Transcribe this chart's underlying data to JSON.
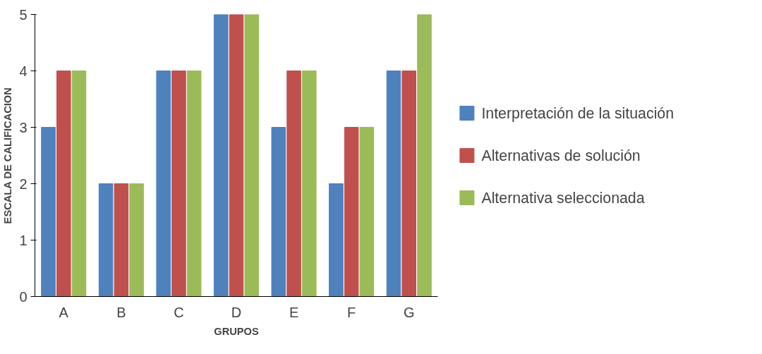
{
  "chart_data": {
    "type": "bar",
    "xlabel": "GRUPOS",
    "ylabel": "ESCALA DE CALIFICACION",
    "categories": [
      "A",
      "B",
      "C",
      "D",
      "E",
      "F",
      "G"
    ],
    "series": [
      {
        "name": "Interpretación de la situación",
        "color": "#4f81bd",
        "values": [
          3,
          2,
          4,
          5,
          3,
          2,
          4
        ]
      },
      {
        "name": "Alternativas de solución",
        "color": "#c0504d",
        "values": [
          4,
          2,
          4,
          5,
          4,
          3,
          4
        ]
      },
      {
        "name": "Alternativa seleccionada",
        "color": "#9bbb59",
        "values": [
          4,
          2,
          4,
          5,
          4,
          3,
          5
        ]
      }
    ],
    "ylim": [
      0,
      5
    ],
    "yticks": [
      0,
      1,
      2,
      3,
      4,
      5
    ],
    "grid": false,
    "legend": "right"
  }
}
